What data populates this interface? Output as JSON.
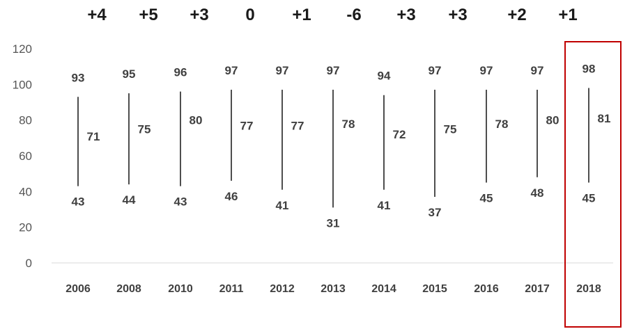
{
  "chart_data": {
    "type": "range",
    "title": "",
    "xlabel": "",
    "ylabel": "",
    "ylim": [
      0,
      120
    ],
    "yticks": [
      "0",
      "20",
      "40",
      "60",
      "80",
      "100",
      "120"
    ],
    "grid": false,
    "categories": [
      "2006",
      "2008",
      "2010",
      "2011",
      "2012",
      "2013",
      "2014",
      "2015",
      "2016",
      "2017",
      "2018"
    ],
    "series": [
      {
        "values": [
          43,
          44,
          43,
          46,
          41,
          31,
          41,
          37,
          45,
          48,
          45
        ]
      },
      {
        "values": [
          71,
          75,
          80,
          77,
          77,
          78,
          72,
          75,
          78,
          80,
          81
        ]
      },
      {
        "values": [
          93,
          95,
          96,
          97,
          97,
          97,
          94,
          97,
          97,
          97,
          98
        ]
      }
    ],
    "annotations": [
      "+4",
      "+5",
      "+3",
      "0",
      "+1",
      "-6",
      "+3",
      "+3",
      "+2",
      "+1"
    ],
    "highlighted_category": "2018",
    "colors": {
      "line": "#222222",
      "text": "#404040",
      "axis": "#d9d9d9",
      "highlight": "#c00000",
      "annotation": "#1a1a1a"
    }
  }
}
